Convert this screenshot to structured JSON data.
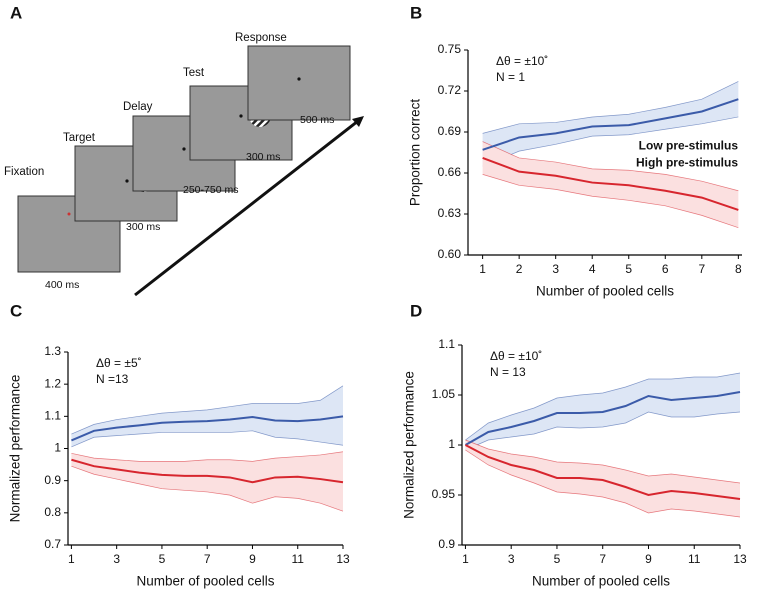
{
  "diagram": {
    "label": "A",
    "stages": [
      {
        "name": "Fixation",
        "duration": "400 ms"
      },
      {
        "name": "Target",
        "duration": "300 ms"
      },
      {
        "name": "Delay",
        "duration": "250-750 ms"
      },
      {
        "name": "Test",
        "duration": "300 ms"
      },
      {
        "name": "Response",
        "duration": "500 ms"
      }
    ]
  },
  "chart_data": [
    {
      "type": "line",
      "label": "B",
      "annotations": [
        "Δθ = ±10˚",
        "N = 1"
      ],
      "xlabel": "Number of pooled cells",
      "ylabel": "Proportion correct",
      "x": [
        1,
        2,
        3,
        4,
        5,
        6,
        7,
        8
      ],
      "xlim": [
        0.6,
        8.1
      ],
      "xticks": [
        1,
        2,
        3,
        4,
        5,
        6,
        7,
        8
      ],
      "ylim": [
        0.6,
        0.75
      ],
      "yticks": [
        {
          "value": 0.6,
          "label": "0.60"
        },
        0.63,
        0.66,
        0.69,
        0.72,
        0.75
      ],
      "legend": "right",
      "series": [
        {
          "name": "Low pre-stimulus",
          "color": "#3b5ba9",
          "band_color": "#dde6f5",
          "values": [
            0.677,
            0.686,
            0.689,
            0.694,
            0.695,
            0.7,
            0.705,
            0.714
          ],
          "upper": [
            0.689,
            0.696,
            0.697,
            0.701,
            0.703,
            0.708,
            0.714,
            0.727
          ],
          "lower": [
            0.665,
            0.676,
            0.681,
            0.687,
            0.688,
            0.692,
            0.696,
            0.701
          ]
        },
        {
          "name": "High pre-stimulus",
          "color": "#d7262e",
          "band_color": "#fbe0e0",
          "values": [
            0.671,
            0.661,
            0.658,
            0.653,
            0.651,
            0.647,
            0.642,
            0.633
          ],
          "upper": [
            0.683,
            0.671,
            0.668,
            0.663,
            0.662,
            0.659,
            0.654,
            0.647
          ],
          "lower": [
            0.659,
            0.651,
            0.648,
            0.643,
            0.64,
            0.636,
            0.629,
            0.62
          ]
        }
      ]
    },
    {
      "type": "line",
      "label": "C",
      "annotations": [
        "Δθ = ±5˚",
        "N =13"
      ],
      "xlabel": "Number of pooled cells",
      "ylabel": "Normalized performance",
      "x": [
        1,
        2,
        3,
        4,
        5,
        6,
        7,
        8,
        9,
        10,
        11,
        12,
        13
      ],
      "xlim": [
        0.85,
        13
      ],
      "xticks": [
        1,
        3,
        5,
        7,
        9,
        11,
        13
      ],
      "ylim": [
        0.7,
        1.3
      ],
      "yticks": [
        0.7,
        0.8,
        0.9,
        1,
        1.1,
        1.2,
        1.3
      ],
      "series": [
        {
          "color": "#3b5ba9",
          "band_color": "#dde6f5",
          "values": [
            1.025,
            1.055,
            1.065,
            1.072,
            1.08,
            1.083,
            1.085,
            1.09,
            1.098,
            1.087,
            1.085,
            1.09,
            1.1
          ],
          "upper": [
            1.045,
            1.075,
            1.09,
            1.1,
            1.11,
            1.115,
            1.12,
            1.13,
            1.14,
            1.14,
            1.14,
            1.15,
            1.195
          ],
          "lower": [
            1.005,
            1.035,
            1.04,
            1.045,
            1.05,
            1.05,
            1.05,
            1.05,
            1.055,
            1.035,
            1.03,
            1.02,
            1.01
          ]
        },
        {
          "color": "#d7262e",
          "band_color": "#fbe0e0",
          "values": [
            0.965,
            0.945,
            0.935,
            0.925,
            0.918,
            0.915,
            0.915,
            0.91,
            0.895,
            0.91,
            0.912,
            0.905,
            0.895
          ],
          "upper": [
            0.985,
            0.97,
            0.965,
            0.96,
            0.96,
            0.96,
            0.965,
            0.965,
            0.96,
            0.97,
            0.975,
            0.98,
            0.99
          ],
          "lower": [
            0.945,
            0.92,
            0.905,
            0.89,
            0.875,
            0.87,
            0.865,
            0.855,
            0.83,
            0.85,
            0.845,
            0.83,
            0.805
          ]
        }
      ]
    },
    {
      "type": "line",
      "label": "D",
      "annotations": [
        "Δθ = ±10˚",
        "N = 13"
      ],
      "xlabel": "Number of pooled cells",
      "ylabel": "Normalized performance",
      "x": [
        1,
        2,
        3,
        4,
        5,
        6,
        7,
        8,
        9,
        10,
        11,
        12,
        13
      ],
      "xlim": [
        0.85,
        13
      ],
      "xticks": [
        1,
        3,
        5,
        7,
        9,
        11,
        13
      ],
      "ylim": [
        0.9,
        1.1
      ],
      "yticks": [
        0.9,
        0.95,
        1,
        1.05,
        1.1
      ],
      "series": [
        {
          "color": "#3b5ba9",
          "band_color": "#dde6f5",
          "values": [
            1.0,
            1.013,
            1.018,
            1.024,
            1.032,
            1.032,
            1.033,
            1.039,
            1.049,
            1.045,
            1.047,
            1.049,
            1.053
          ],
          "upper": [
            1.005,
            1.022,
            1.03,
            1.037,
            1.047,
            1.05,
            1.052,
            1.058,
            1.066,
            1.066,
            1.068,
            1.068,
            1.072
          ],
          "lower": [
            0.995,
            1.005,
            1.008,
            1.011,
            1.018,
            1.017,
            1.018,
            1.022,
            1.033,
            1.028,
            1.028,
            1.031,
            1.033
          ]
        },
        {
          "color": "#d7262e",
          "band_color": "#fbe0e0",
          "values": [
            1.0,
            0.988,
            0.98,
            0.975,
            0.967,
            0.967,
            0.965,
            0.958,
            0.95,
            0.954,
            0.952,
            0.949,
            0.946
          ],
          "upper": [
            1.005,
            0.996,
            0.991,
            0.988,
            0.983,
            0.982,
            0.98,
            0.975,
            0.969,
            0.971,
            0.968,
            0.965,
            0.962
          ],
          "lower": [
            0.995,
            0.98,
            0.97,
            0.962,
            0.953,
            0.951,
            0.948,
            0.942,
            0.932,
            0.936,
            0.934,
            0.931,
            0.928
          ]
        }
      ]
    }
  ]
}
